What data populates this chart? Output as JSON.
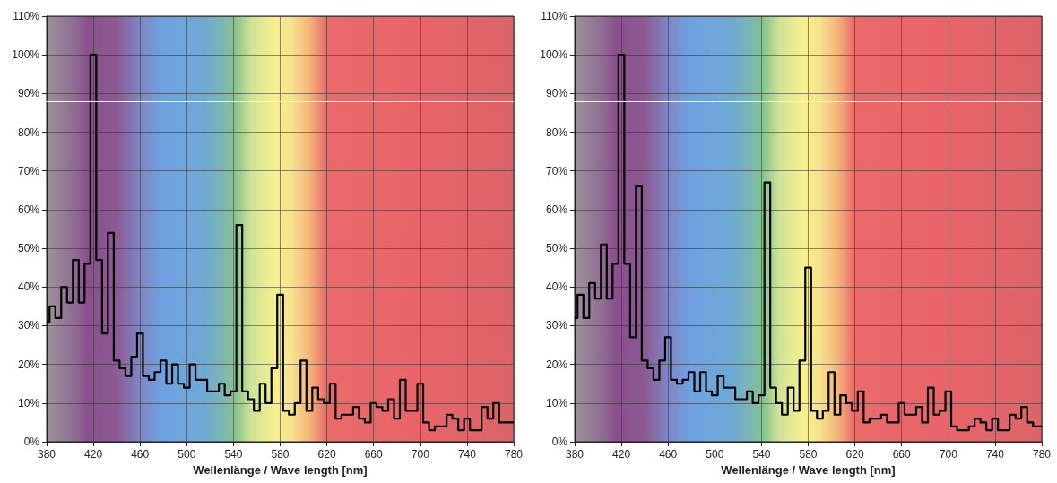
{
  "chart_data": [
    {
      "type": "step",
      "xlabel": "Wellenlänge / Wave length [nm]",
      "x": [
        380,
        385,
        390,
        395,
        400,
        405,
        410,
        415,
        420,
        425,
        430,
        435,
        440,
        445,
        450,
        455,
        460,
        465,
        470,
        475,
        480,
        485,
        490,
        495,
        500,
        505,
        510,
        515,
        520,
        525,
        530,
        535,
        540,
        545,
        550,
        555,
        560,
        565,
        570,
        575,
        580,
        585,
        590,
        595,
        600,
        605,
        610,
        615,
        620,
        625,
        630,
        635,
        640,
        645,
        650,
        655,
        660,
        665,
        670,
        675,
        680,
        685,
        690,
        695,
        700,
        705,
        710,
        715,
        720,
        725,
        730,
        735,
        740,
        745,
        750,
        755,
        760,
        765,
        770,
        775,
        780
      ],
      "series": [
        {
          "color": "#000000",
          "values": [
            31,
            35,
            32,
            40,
            36,
            47,
            36,
            46,
            100,
            47,
            28,
            54,
            21,
            19,
            17,
            22,
            28,
            17,
            16,
            18,
            21,
            15,
            20,
            15,
            14,
            20,
            16,
            16,
            13,
            13,
            15,
            12,
            13,
            56,
            13,
            11,
            8,
            15,
            10,
            19,
            38,
            8,
            7,
            10,
            21,
            8,
            14,
            11,
            10,
            15,
            6,
            7,
            7,
            9,
            6,
            5,
            10,
            9,
            8,
            11,
            6,
            16,
            8,
            8,
            15,
            5,
            3,
            4,
            4,
            7,
            6,
            3,
            6,
            3,
            3,
            9,
            6,
            10,
            5,
            5,
            5
          ]
        }
      ],
      "xlim": [
        380,
        780
      ],
      "xticks": [
        380,
        420,
        460,
        500,
        540,
        580,
        620,
        660,
        700,
        740,
        780
      ],
      "ylim": [
        0,
        110
      ],
      "yticks": [
        {
          "value": 0,
          "label": "0%"
        },
        {
          "value": 10,
          "label": "10%"
        },
        {
          "value": 20,
          "label": "20%"
        },
        {
          "value": 30,
          "label": "30%"
        },
        {
          "value": 40,
          "label": "40%"
        },
        {
          "value": 50,
          "label": "50%"
        },
        {
          "value": 60,
          "label": "60%"
        },
        {
          "value": 70,
          "label": "70%"
        },
        {
          "value": 80,
          "label": "80%"
        },
        {
          "value": 90,
          "label": "90%"
        },
        {
          "value": 100,
          "label": "100%"
        },
        {
          "value": 110,
          "label": "110%"
        }
      ],
      "grid": true,
      "ref_lines": [
        {
          "axis": "y",
          "value": 88,
          "color": "#ffffff"
        }
      ]
    },
    {
      "type": "step",
      "xlabel": "Wellenlänge / Wave length [nm]",
      "x": [
        380,
        385,
        390,
        395,
        400,
        405,
        410,
        415,
        420,
        425,
        430,
        435,
        440,
        445,
        450,
        455,
        460,
        465,
        470,
        475,
        480,
        485,
        490,
        495,
        500,
        505,
        510,
        515,
        520,
        525,
        530,
        535,
        540,
        545,
        550,
        555,
        560,
        565,
        570,
        575,
        580,
        585,
        590,
        595,
        600,
        605,
        610,
        615,
        620,
        625,
        630,
        635,
        640,
        645,
        650,
        655,
        660,
        665,
        670,
        675,
        680,
        685,
        690,
        695,
        700,
        705,
        710,
        715,
        720,
        725,
        730,
        735,
        740,
        745,
        750,
        755,
        760,
        765,
        770,
        775,
        780
      ],
      "series": [
        {
          "color": "#000000",
          "values": [
            32,
            38,
            32,
            41,
            37,
            51,
            37,
            46,
            100,
            46,
            27,
            66,
            21,
            19,
            16,
            21,
            27,
            16,
            15,
            16,
            18,
            13,
            18,
            13,
            12,
            17,
            14,
            14,
            11,
            11,
            13,
            10,
            12,
            67,
            14,
            10,
            7,
            14,
            8,
            21,
            45,
            8,
            6,
            8,
            18,
            7,
            12,
            10,
            8,
            13,
            5,
            6,
            6,
            7,
            5,
            5,
            10,
            7,
            7,
            9,
            5,
            14,
            7,
            8,
            13,
            4,
            3,
            3,
            4,
            6,
            5,
            3,
            6,
            3,
            3,
            7,
            6,
            9,
            5,
            4,
            4
          ]
        }
      ],
      "xlim": [
        380,
        780
      ],
      "xticks": [
        380,
        420,
        460,
        500,
        540,
        580,
        620,
        660,
        700,
        740,
        780
      ],
      "ylim": [
        0,
        110
      ],
      "yticks": [
        {
          "value": 0,
          "label": "0%"
        },
        {
          "value": 10,
          "label": "10%"
        },
        {
          "value": 20,
          "label": "20%"
        },
        {
          "value": 30,
          "label": "30%"
        },
        {
          "value": 40,
          "label": "40%"
        },
        {
          "value": 50,
          "label": "50%"
        },
        {
          "value": 60,
          "label": "60%"
        },
        {
          "value": 70,
          "label": "70%"
        },
        {
          "value": 80,
          "label": "80%"
        },
        {
          "value": 90,
          "label": "90%"
        },
        {
          "value": 100,
          "label": "100%"
        },
        {
          "value": 110,
          "label": "110%"
        }
      ],
      "grid": true,
      "ref_lines": [
        {
          "axis": "y",
          "value": 88,
          "color": "#ffffff"
        }
      ]
    }
  ]
}
